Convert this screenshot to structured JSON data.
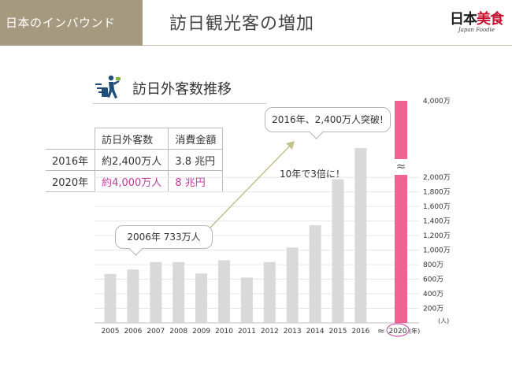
{
  "header": {
    "tag": "日本のインバウンド",
    "title": "訪日観光客の増加",
    "logo": {
      "text_black": "日本",
      "text_red": "美食",
      "sub": "Japan Foodie"
    }
  },
  "section": {
    "title": "訪日外客数推移",
    "icon": "traveler-icon"
  },
  "stats_table": {
    "headers": [
      "訪日外客数",
      "消費金額"
    ],
    "rows": [
      {
        "label": "2016年",
        "visitors": "約2,400万人",
        "spend": "3.8 兆円"
      },
      {
        "label": "2020年",
        "visitors": "約4,000万人",
        "spend": "8 兆円"
      }
    ]
  },
  "callouts": {
    "c2006": "2006年 733万人",
    "c2016": "2016年、2,400万人突破!"
  },
  "note": "10年で3倍に！",
  "colors": {
    "header_bg": "#a59a7f",
    "bar": "#d9d9d9",
    "target_bar": "#f06292",
    "arrow": "#c5c08e",
    "highlight_text": "#c0399a"
  },
  "chart_data": {
    "type": "bar",
    "categories": [
      "2005",
      "2006",
      "2007",
      "2008",
      "2009",
      "2010",
      "2011",
      "2012",
      "2013",
      "2014",
      "2015",
      "2016",
      "≈",
      "2020"
    ],
    "values": [
      673,
      733,
      835,
      835,
      679,
      861,
      622,
      836,
      1036,
      1341,
      1974,
      2404,
      null,
      4000
    ],
    "ylim": [
      0,
      4000
    ],
    "y_break": [
      2000,
      4000
    ],
    "y_ticks": [
      "",
      "200万",
      "400万",
      "600万",
      "800万",
      "1,000万",
      "1,200万",
      "1,400万",
      "1,600万",
      "1,800万",
      "2,000万"
    ],
    "y_top_label": "4,000万",
    "break_symbol": "≈",
    "y_unit": "(人)",
    "x_unit": "(年)",
    "highlight_category": "2020"
  }
}
